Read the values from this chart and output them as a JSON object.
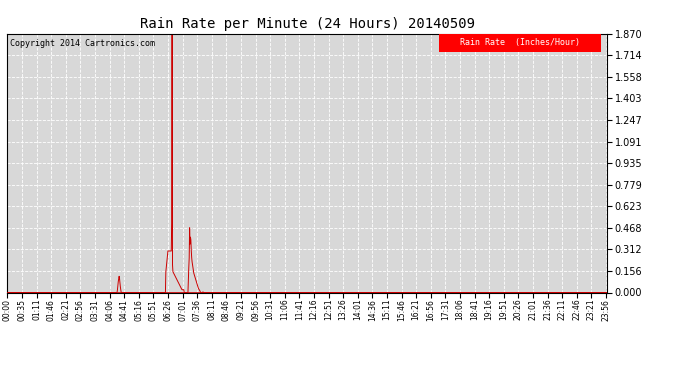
{
  "title": "Rain Rate per Minute (24 Hours) 20140509",
  "copyright_text": "Copyright 2014 Cartronics.com",
  "legend_label": "Rain Rate  (Inches/Hour)",
  "legend_bg": "#ff0000",
  "legend_fg": "#ffffff",
  "line_color": "#cc0000",
  "background_color": "#ffffff",
  "plot_bg_color": "#d8d8d8",
  "grid_color": "#ffffff",
  "y_ticks": [
    0.0,
    0.156,
    0.312,
    0.468,
    0.623,
    0.779,
    0.935,
    1.091,
    1.247,
    1.403,
    1.558,
    1.714,
    1.87
  ],
  "ylim": [
    0.0,
    1.87
  ],
  "total_minutes": 1440,
  "x_tick_labels": [
    "00:00",
    "00:35",
    "01:11",
    "01:46",
    "02:21",
    "02:56",
    "03:31",
    "04:06",
    "04:41",
    "05:16",
    "05:51",
    "06:26",
    "07:01",
    "07:36",
    "08:11",
    "08:46",
    "09:21",
    "09:56",
    "10:31",
    "11:06",
    "11:41",
    "12:16",
    "12:51",
    "13:26",
    "14:01",
    "14:36",
    "15:11",
    "15:46",
    "16:21",
    "16:56",
    "17:31",
    "18:06",
    "18:41",
    "19:16",
    "19:51",
    "20:26",
    "21:01",
    "21:36",
    "22:11",
    "22:46",
    "23:21",
    "23:56"
  ],
  "x_tick_positions_minutes": [
    0,
    35,
    71,
    106,
    141,
    176,
    211,
    246,
    281,
    316,
    351,
    386,
    421,
    456,
    491,
    526,
    561,
    596,
    631,
    666,
    701,
    736,
    771,
    806,
    841,
    876,
    911,
    946,
    981,
    1016,
    1051,
    1086,
    1121,
    1156,
    1191,
    1226,
    1261,
    1296,
    1331,
    1366,
    1401,
    1436
  ],
  "spike_minute": 396,
  "spike_value": 1.87,
  "small_bump_minute": 272,
  "small_bump_value": 0.117,
  "secondary_peak_minute": 456,
  "secondary_peak_value": 0.468
}
